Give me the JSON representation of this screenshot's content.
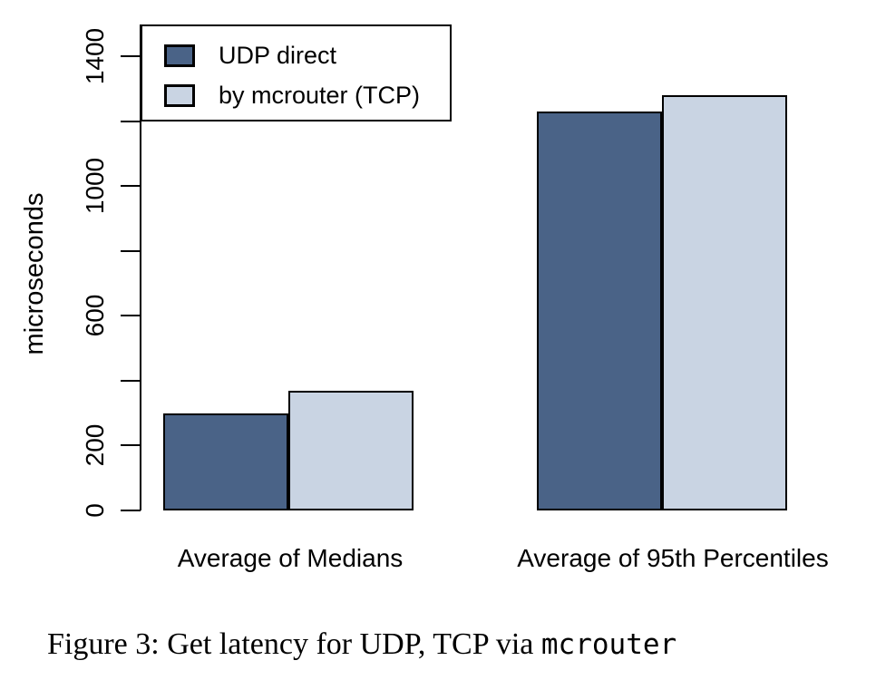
{
  "figure": {
    "caption": {
      "prefix": "Figure 3: Get latency for UDP, TCP via ",
      "code": "mcrouter"
    },
    "legend": {
      "position": "top-left",
      "items": [
        {
          "label": "UDP direct",
          "color": "#4A6387"
        },
        {
          "label": "by mcrouter (TCP)",
          "color": "#C9D4E3"
        }
      ]
    }
  },
  "chart_data": {
    "type": "bar",
    "title": "",
    "xlabel": "",
    "ylabel": "microseconds",
    "ylim": [
      0,
      1400
    ],
    "yticks_all": [
      0,
      200,
      400,
      600,
      800,
      1000,
      1200,
      1400
    ],
    "yticks_labeled": [
      "0",
      "200",
      "600",
      "1000",
      "1400"
    ],
    "grid": false,
    "legend_position": "top-left",
    "categories": [
      "Average of Medians",
      "Average of 95th Percentiles"
    ],
    "series": [
      {
        "name": "UDP direct",
        "color": "#4A6387",
        "values": [
          300,
          1230
        ]
      },
      {
        "name": "by mcrouter (TCP)",
        "color": "#C9D4E3",
        "values": [
          370,
          1280
        ]
      }
    ]
  }
}
